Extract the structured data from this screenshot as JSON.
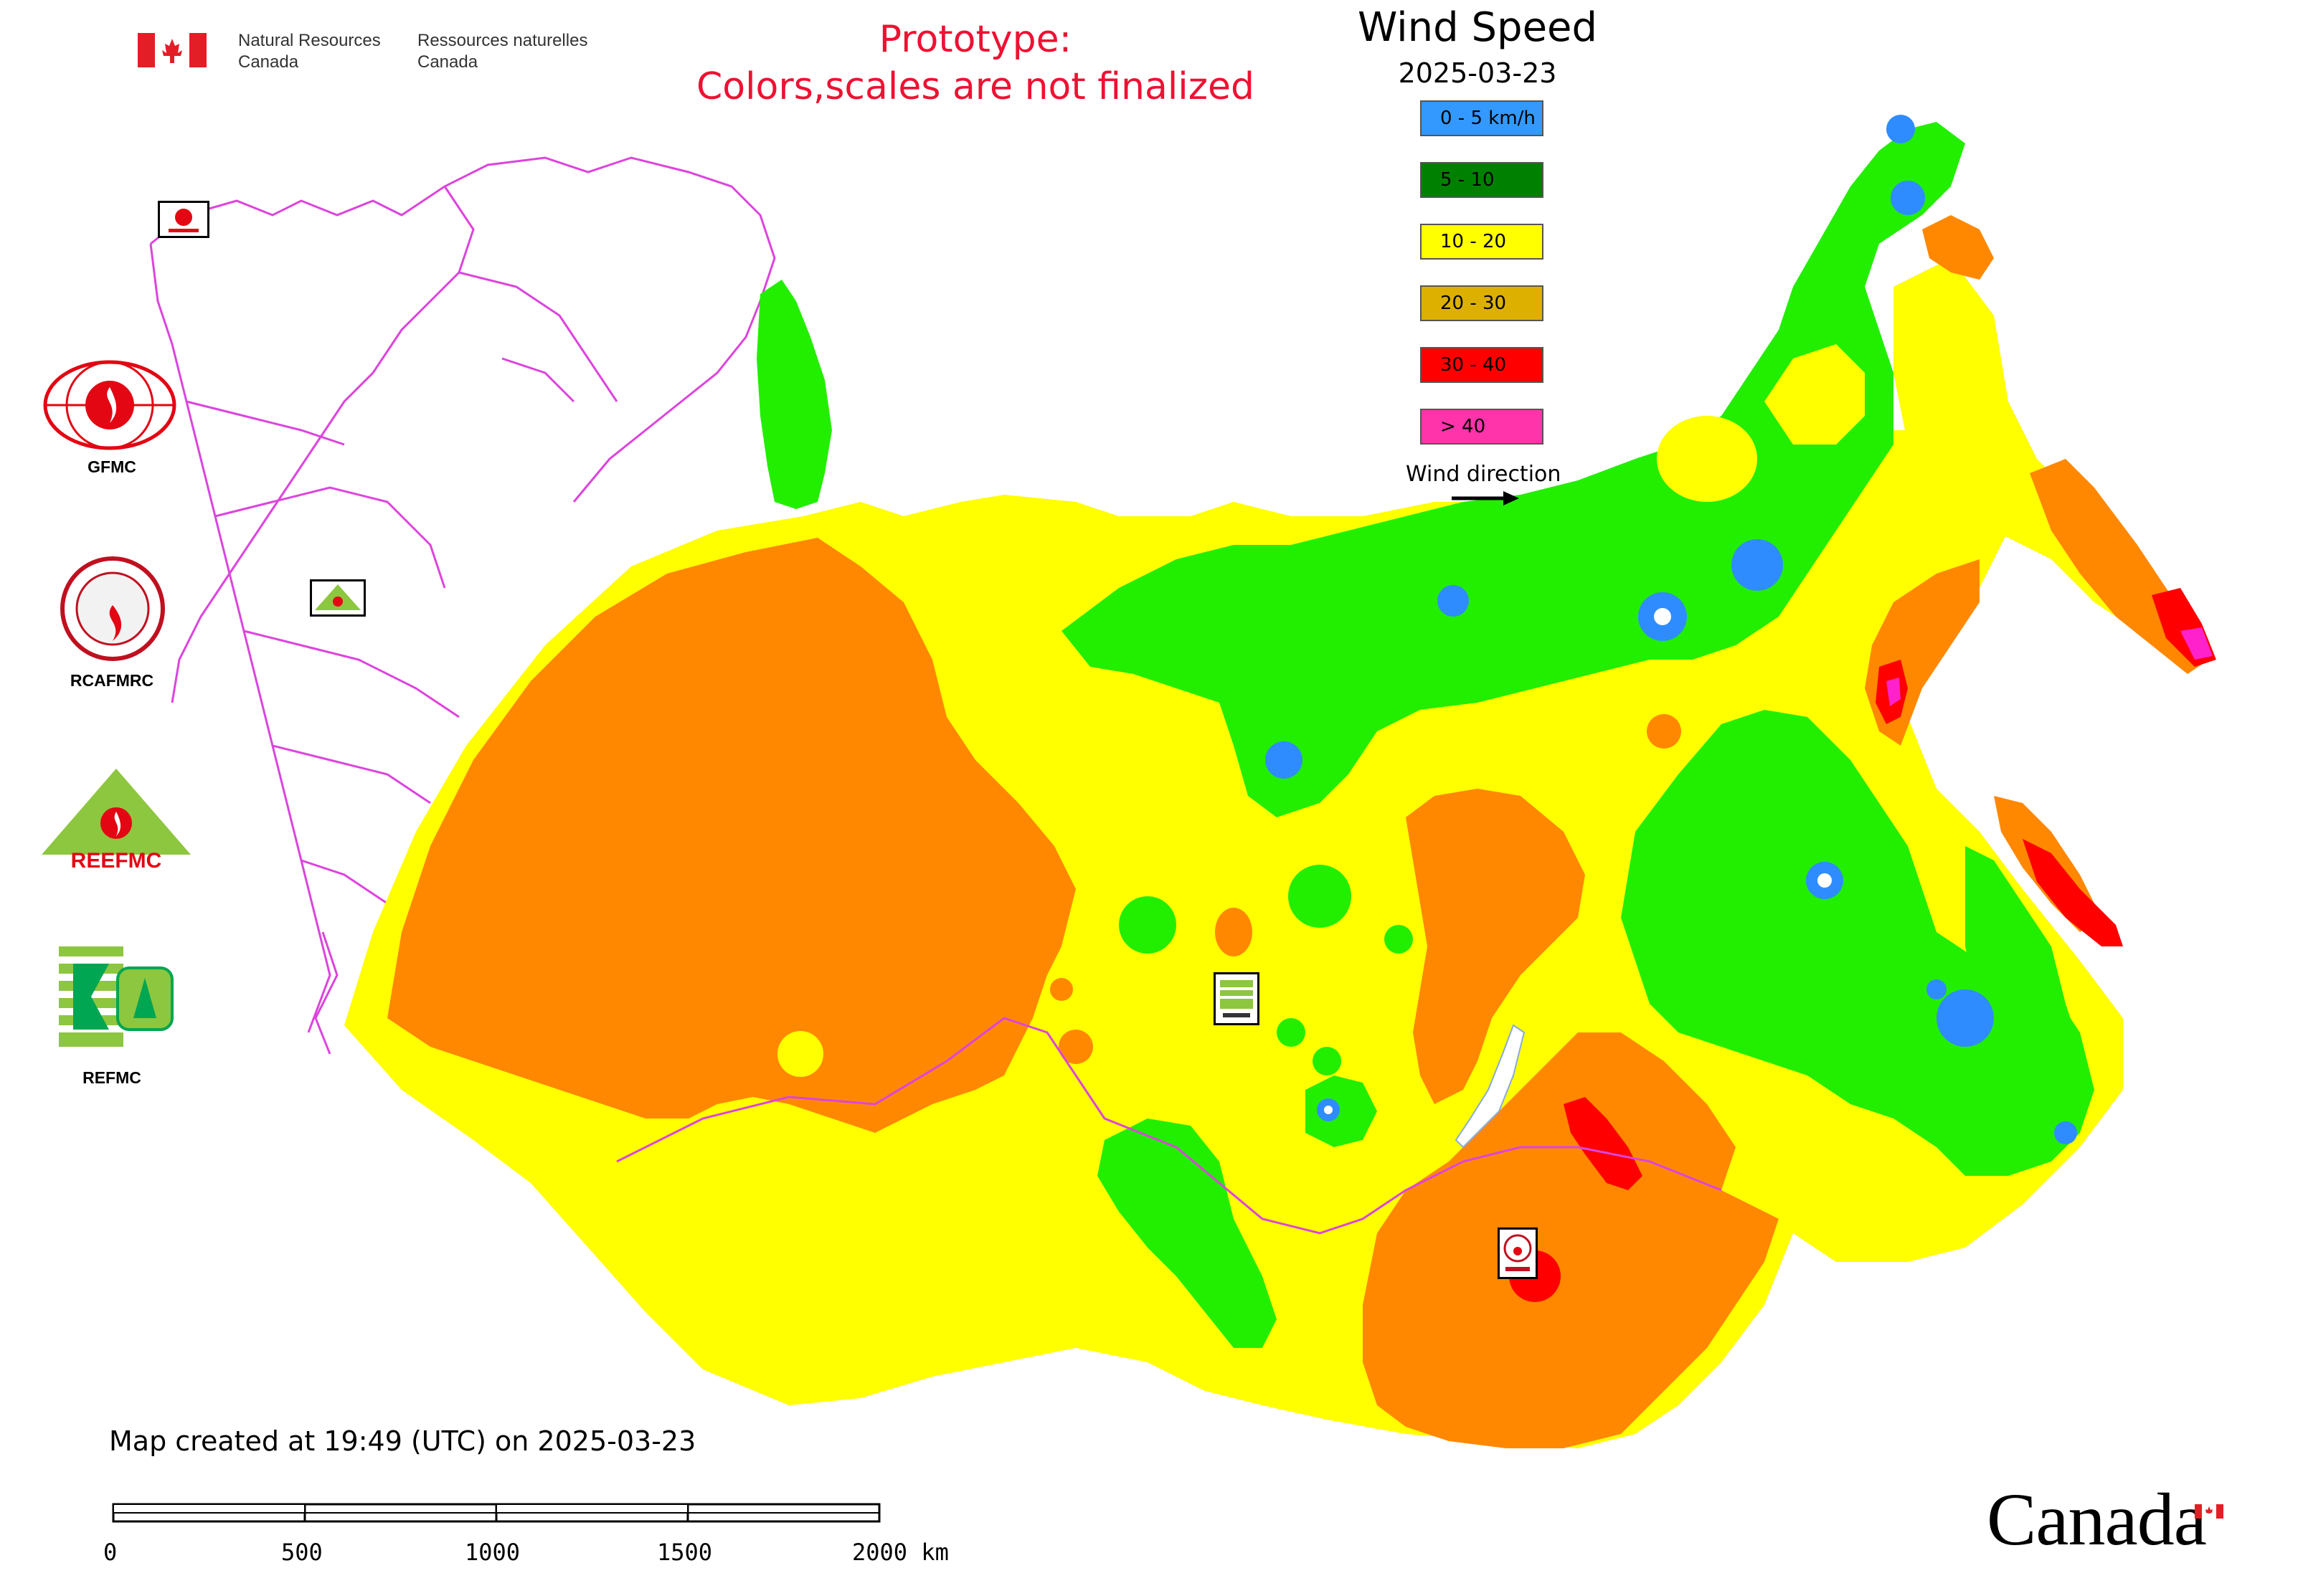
{
  "header": {
    "agency_en_line1": "Natural Resources",
    "agency_en_line2": "Canada",
    "agency_fr_line1": "Ressources naturelles",
    "agency_fr_line2": "Canada"
  },
  "prototype_notice": {
    "line1": "Prototype:",
    "line2": "Colors,scales are not finalized",
    "color": "#ee1133"
  },
  "legend": {
    "title": "Wind Speed",
    "date": "2025-03-23",
    "classes": [
      {
        "label": "0 - 5 km/h",
        "color": "#3399ff"
      },
      {
        "label": "5 - 10",
        "color": "#008000"
      },
      {
        "label": "10 - 20",
        "color": "#ffff00"
      },
      {
        "label": "20 - 30",
        "color": "#ddb000"
      },
      {
        "label": "30 - 40",
        "color": "#ff0000"
      },
      {
        "label": "> 40",
        "color": "#ff33aa"
      }
    ],
    "wind_direction_label": "Wind direction"
  },
  "map_colors": {
    "calm": "#2f8cff",
    "green": "#22ee00",
    "yellow": "#ffff00",
    "orange": "#ff8800",
    "red": "#ff0000",
    "magenta": "#ff22cc",
    "borders": "#dd44dd"
  },
  "organizations": [
    {
      "label": "GFMC",
      "icon": "gfmc-logo-icon"
    },
    {
      "label": "RCAFMRC",
      "icon": "rcafmrc-logo-icon"
    },
    {
      "label": "",
      "icon": "reefmc-logo-icon",
      "logo_text": "REEFMC"
    },
    {
      "label": "REFMC",
      "icon": "refmc-logo-icon"
    }
  ],
  "footer": {
    "created_note": "Map created at 19:49 (UTC) on 2025-03-23",
    "scale_labels": [
      "0",
      "500",
      "1000",
      "1500",
      "2000 km"
    ],
    "wordmark": "Canada"
  }
}
